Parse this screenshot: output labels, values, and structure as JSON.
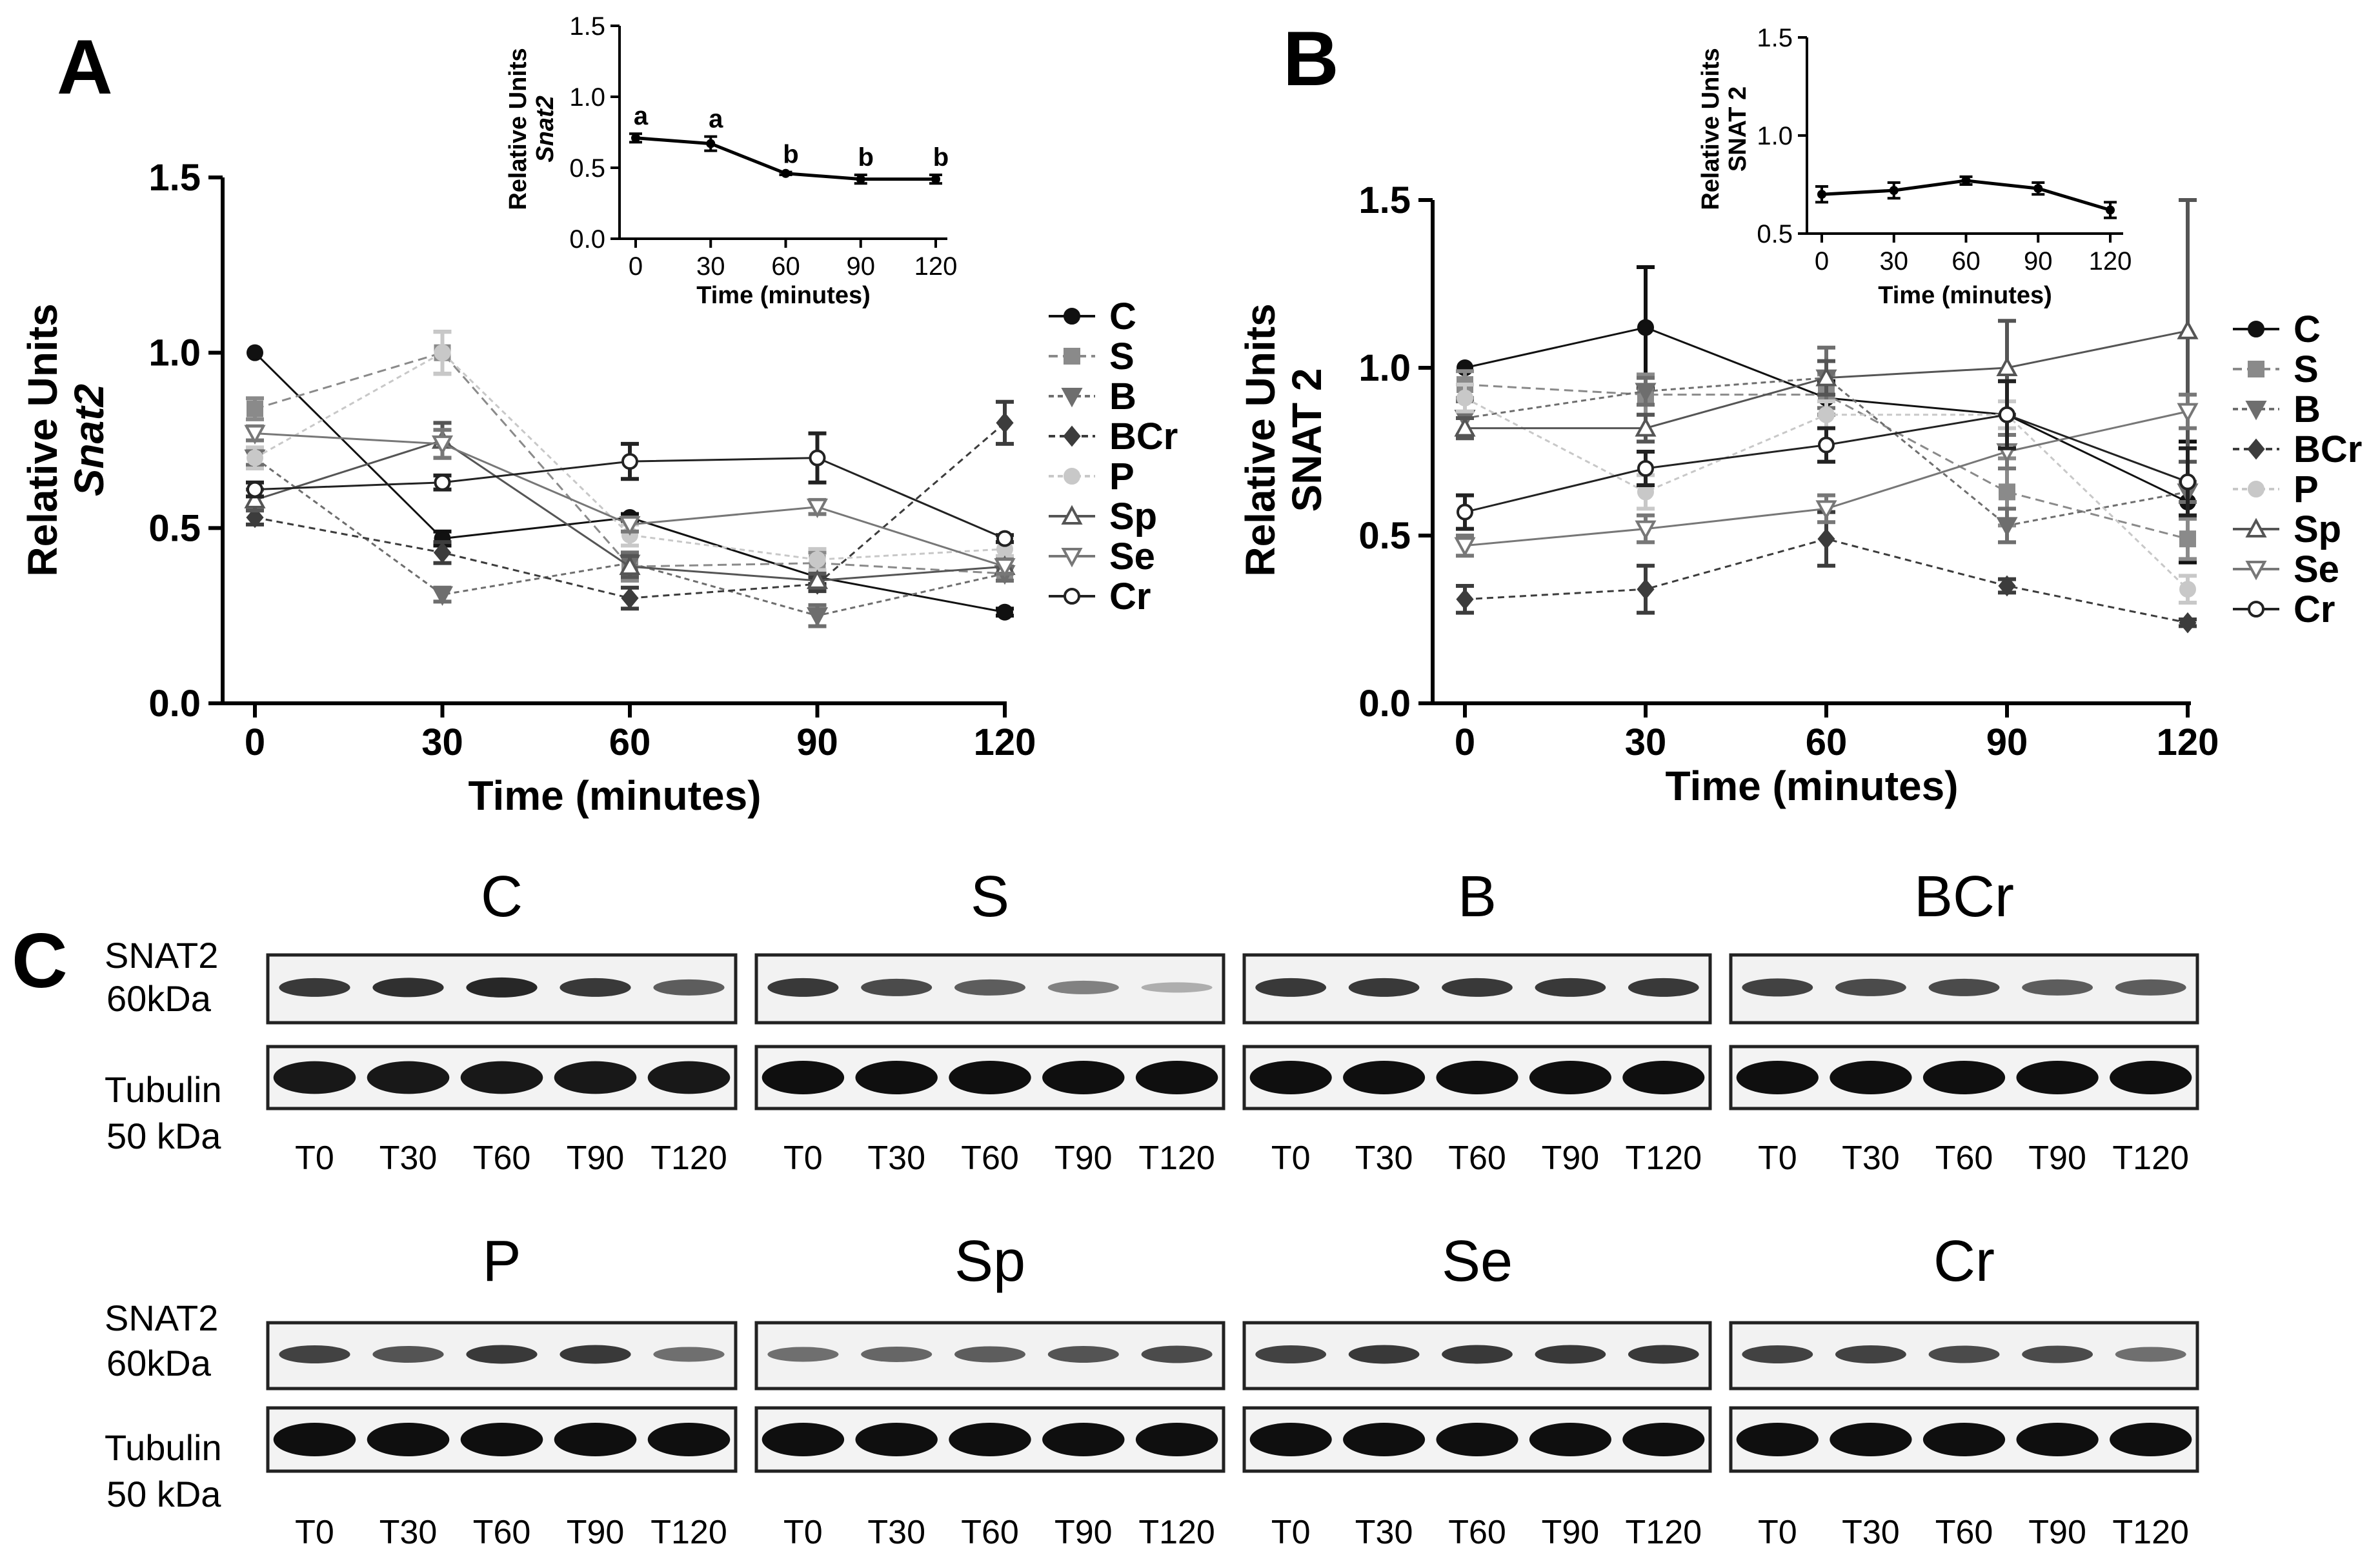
{
  "colors": {
    "C": "#111111",
    "S": "#8a8a8a",
    "B": "#6e6e6e",
    "BCr": "#3c3c3c",
    "P": "#c8c8c8",
    "Sp": "#555555",
    "Se": "#777777",
    "Cr": "#222222"
  },
  "chart_data": [
    {
      "id": "A",
      "panel_label": "A",
      "type": "line",
      "xlabel": "Time (minutes)",
      "ylabel": [
        "Relative Units",
        "Snat2"
      ],
      "x": [
        0,
        30,
        60,
        90,
        120
      ],
      "x_ticks": [
        "0",
        "30",
        "60",
        "90",
        "120"
      ],
      "ylim": [
        0,
        1.5
      ],
      "y_ticks": [
        "0.0",
        "0.5",
        "1.0",
        "1.5"
      ],
      "legend_position": "right",
      "series": [
        {
          "name": "C",
          "values": [
            1.0,
            0.47,
            0.53,
            0.36,
            0.26
          ],
          "err": [
            0,
            0.02,
            0.01,
            0.02,
            0.01
          ],
          "marker": "circle-filled",
          "dash": "",
          "width": 3
        },
        {
          "name": "S",
          "values": [
            0.84,
            1.0,
            0.39,
            0.4,
            0.37
          ],
          "err": [
            0.03,
            0.06,
            0.04,
            0.03,
            0.02
          ],
          "marker": "square-filled",
          "dash": "14,8",
          "width": 3
        },
        {
          "name": "B",
          "values": [
            0.7,
            0.31,
            0.4,
            0.25,
            0.37
          ],
          "err": [
            0.02,
            0.02,
            0.03,
            0.03,
            0.02
          ],
          "marker": "tri-down-filled",
          "dash": "8,6",
          "width": 3
        },
        {
          "name": "BCr",
          "values": [
            0.53,
            0.43,
            0.3,
            0.34,
            0.8
          ],
          "err": [
            0.02,
            0.03,
            0.03,
            0.02,
            0.06
          ],
          "marker": "diamond-filled",
          "dash": "10,7",
          "width": 3
        },
        {
          "name": "P",
          "values": [
            0.7,
            1.0,
            0.48,
            0.41,
            0.44
          ],
          "err": [
            0.03,
            0.06,
            0.03,
            0.03,
            0.02
          ],
          "marker": "circle-filled",
          "dash": "8,6",
          "width": 3
        },
        {
          "name": "Sp",
          "values": [
            0.58,
            0.75,
            0.39,
            0.35,
            0.39
          ],
          "err": [
            0.03,
            0.05,
            0.03,
            0.02,
            0.02
          ],
          "marker": "tri-up-open",
          "dash": "",
          "width": 3
        },
        {
          "name": "Se",
          "values": [
            0.77,
            0.74,
            0.51,
            0.56,
            0.39
          ],
          "err": [
            0.02,
            0.04,
            0.02,
            0.02,
            0.02
          ],
          "marker": "tri-down-open",
          "dash": "",
          "width": 3
        },
        {
          "name": "Cr",
          "values": [
            0.61,
            0.63,
            0.69,
            0.7,
            0.47
          ],
          "err": [
            0.02,
            0.02,
            0.05,
            0.07,
            0.01
          ],
          "marker": "circle-open",
          "dash": "",
          "width": 3
        }
      ],
      "inset": {
        "type": "line",
        "xlabel": "Time (minutes)",
        "ylabel": [
          "Relative Units",
          "Snat2"
        ],
        "x": [
          0,
          30,
          60,
          90,
          120
        ],
        "x_ticks": [
          "0",
          "30",
          "60",
          "90",
          "120"
        ],
        "ylim": [
          0,
          1.5
        ],
        "y_ticks": [
          "0.0",
          "0.5",
          "1.0",
          "1.5"
        ],
        "values": [
          0.71,
          0.67,
          0.46,
          0.42,
          0.42
        ],
        "err": [
          0.03,
          0.05,
          0.01,
          0.03,
          0.03
        ],
        "significance": [
          "a",
          "a",
          "b",
          "b",
          "b"
        ]
      }
    },
    {
      "id": "B",
      "panel_label": "B",
      "type": "line",
      "xlabel": "Time (minutes)",
      "ylabel": [
        "Relative Units",
        "SNAT 2"
      ],
      "x": [
        0,
        30,
        60,
        90,
        120
      ],
      "x_ticks": [
        "0",
        "30",
        "60",
        "90",
        "120"
      ],
      "ylim": [
        0,
        1.5
      ],
      "y_ticks": [
        "0.0",
        "0.5",
        "1.0",
        "1.5"
      ],
      "legend_position": "right",
      "series": [
        {
          "name": "C",
          "values": [
            1.0,
            1.12,
            0.91,
            0.86,
            0.6
          ],
          "err": [
            0,
            0.18,
            0.05,
            0.1,
            0.18
          ],
          "marker": "circle-filled",
          "dash": "",
          "width": 3
        },
        {
          "name": "S",
          "values": [
            0.95,
            0.92,
            0.92,
            0.63,
            0.49
          ],
          "err": [
            0.04,
            0.06,
            0.06,
            0.1,
            0.06
          ],
          "marker": "square-filled",
          "dash": "14,8",
          "width": 3
        },
        {
          "name": "B",
          "values": [
            0.85,
            0.93,
            0.97,
            0.53,
            0.63
          ],
          "err": [
            0.05,
            0.04,
            0.09,
            0.05,
            0.03
          ],
          "marker": "tri-down-filled",
          "dash": "8,6",
          "width": 3
        },
        {
          "name": "BCr",
          "values": [
            0.31,
            0.34,
            0.49,
            0.35,
            0.24
          ],
          "err": [
            0.04,
            0.07,
            0.08,
            0.02,
            0.01
          ],
          "marker": "diamond-filled",
          "dash": "10,7",
          "width": 3
        },
        {
          "name": "P",
          "values": [
            0.91,
            0.63,
            0.86,
            0.86,
            0.34
          ],
          "err": [
            0.04,
            0.05,
            0.04,
            0.04,
            0.04
          ],
          "marker": "circle-filled",
          "dash": "8,6",
          "width": 3
        },
        {
          "name": "Sp",
          "values": [
            0.82,
            0.82,
            0.97,
            1.0,
            1.11
          ],
          "err": [
            0.03,
            0.04,
            0.05,
            0.14,
            0.39
          ],
          "marker": "tri-up-open",
          "dash": "",
          "width": 3
        },
        {
          "name": "Se",
          "values": [
            0.47,
            0.52,
            0.58,
            0.75,
            0.87
          ],
          "err": [
            0.03,
            0.04,
            0.04,
            0.05,
            0.05
          ],
          "marker": "tri-down-open",
          "dash": "",
          "width": 3
        },
        {
          "name": "Cr",
          "values": [
            0.57,
            0.7,
            0.77,
            0.86,
            0.66
          ],
          "err": [
            0.05,
            0.05,
            0.05,
            0.1,
            0.1
          ],
          "marker": "circle-open",
          "dash": "",
          "width": 3
        }
      ],
      "inset": {
        "type": "line",
        "xlabel": "Time (minutes)",
        "ylabel": [
          "Relative Units",
          "SNAT 2"
        ],
        "x": [
          0,
          30,
          60,
          90,
          120
        ],
        "x_ticks": [
          "0",
          "30",
          "60",
          "90",
          "120"
        ],
        "ylim": [
          0.5,
          1.5
        ],
        "y_ticks": [
          "0.5",
          "1.0",
          "1.5"
        ],
        "values": [
          0.7,
          0.72,
          0.77,
          0.73,
          0.62
        ],
        "err": [
          0.04,
          0.04,
          0.02,
          0.03,
          0.04
        ],
        "significance": []
      }
    }
  ],
  "blots": {
    "panel_label": "C",
    "snat2_label": [
      "SNAT2",
      "60kDa"
    ],
    "tubulin_label": [
      "Tubulin",
      "50 kDa"
    ],
    "time_points": [
      "T0",
      "T30",
      "T60",
      "T90",
      "T120"
    ],
    "groups": [
      {
        "name": "C",
        "snat2_intensity": [
          0.85,
          0.9,
          0.95,
          0.85,
          0.65
        ],
        "tubulin_intensity": [
          0.95,
          0.95,
          0.95,
          0.95,
          0.95
        ]
      },
      {
        "name": "S",
        "snat2_intensity": [
          0.85,
          0.75,
          0.65,
          0.45,
          0.2
        ],
        "tubulin_intensity": [
          1.0,
          1.0,
          1.0,
          1.0,
          1.0
        ]
      },
      {
        "name": "B",
        "snat2_intensity": [
          0.85,
          0.85,
          0.85,
          0.85,
          0.85
        ],
        "tubulin_intensity": [
          1.0,
          1.0,
          1.0,
          1.0,
          1.0
        ]
      },
      {
        "name": "BCr",
        "snat2_intensity": [
          0.8,
          0.75,
          0.75,
          0.65,
          0.65
        ],
        "tubulin_intensity": [
          1.0,
          1.0,
          1.0,
          1.0,
          1.0
        ]
      },
      {
        "name": "P",
        "snat2_intensity": [
          0.8,
          0.7,
          0.85,
          0.85,
          0.55
        ],
        "tubulin_intensity": [
          1.0,
          1.0,
          1.0,
          1.0,
          1.0
        ]
      },
      {
        "name": "Sp",
        "snat2_intensity": [
          0.55,
          0.6,
          0.65,
          0.7,
          0.75
        ],
        "tubulin_intensity": [
          1.0,
          1.0,
          1.0,
          1.0,
          1.0
        ]
      },
      {
        "name": "Se",
        "snat2_intensity": [
          0.8,
          0.85,
          0.85,
          0.85,
          0.85
        ],
        "tubulin_intensity": [
          1.0,
          1.0,
          1.0,
          1.0,
          1.0
        ]
      },
      {
        "name": "Cr",
        "snat2_intensity": [
          0.8,
          0.8,
          0.75,
          0.75,
          0.55
        ],
        "tubulin_intensity": [
          1.0,
          1.0,
          1.0,
          1.0,
          1.0
        ]
      }
    ]
  }
}
